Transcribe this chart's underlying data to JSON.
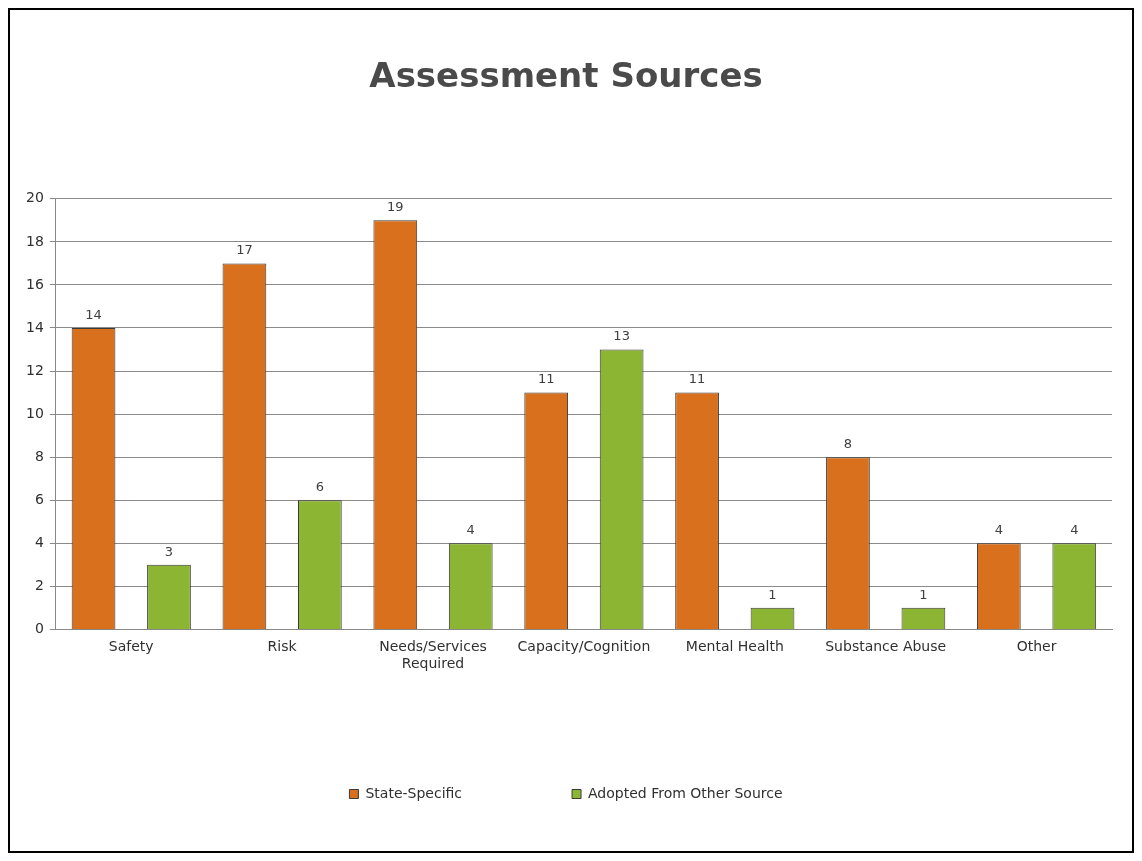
{
  "chart_data": {
    "type": "bar",
    "title": "Assessment Sources",
    "categories": [
      "Safety",
      "Risk",
      "Needs/Services Required",
      "Capacity/Cognition",
      "Mental Health",
      "Substance Abuse",
      "Other"
    ],
    "series": [
      {
        "name": "State-Specific",
        "color": "#d9701e",
        "values": [
          14,
          17,
          19,
          11,
          11,
          8,
          4
        ]
      },
      {
        "name": "Adopted From Other Source",
        "color": "#8cb534",
        "values": [
          3,
          6,
          4,
          13,
          1,
          1,
          4
        ]
      }
    ],
    "ylim": [
      0,
      20
    ],
    "yticks": [
      0,
      2,
      4,
      6,
      8,
      10,
      12,
      14,
      16,
      18,
      20
    ],
    "grid": "y",
    "legend": "bottom",
    "data_labels": true
  }
}
